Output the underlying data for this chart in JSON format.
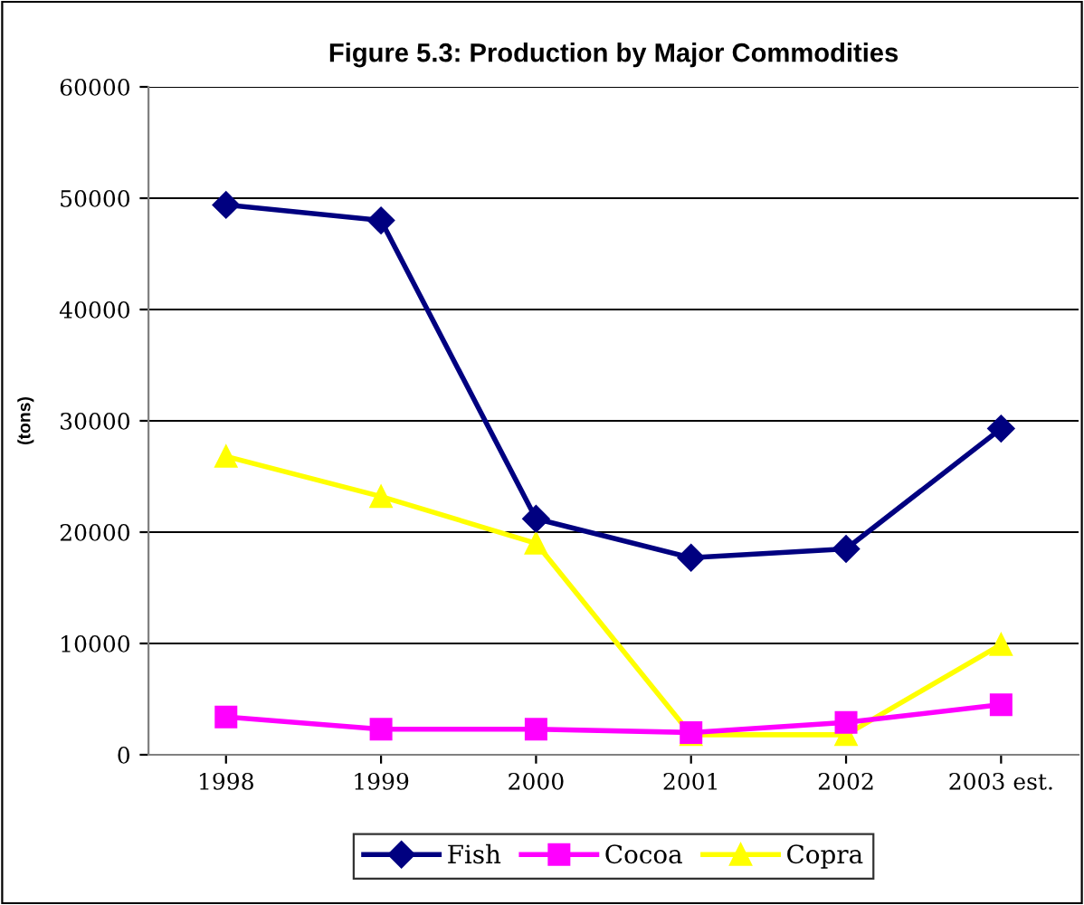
{
  "chart_data": {
    "type": "line",
    "title": "Figure 5.3: Production by Major Commodities",
    "ylabel": "(tons)",
    "categories": [
      "1998",
      "1999",
      "2000",
      "2001",
      "2002",
      "2003 est."
    ],
    "series": [
      {
        "name": "Fish",
        "color": "#000080",
        "marker": "diamond",
        "values": [
          49400,
          48000,
          21200,
          17700,
          18500,
          29300
        ]
      },
      {
        "name": "Cocoa",
        "color": "#ff00ff",
        "marker": "square",
        "values": [
          3400,
          2300,
          2300,
          2000,
          2900,
          4500
        ]
      },
      {
        "name": "Copra",
        "color": "#ffff00",
        "marker": "triangle",
        "values": [
          26800,
          23200,
          19000,
          1800,
          1800,
          9900
        ]
      }
    ],
    "ylim": [
      0,
      60000
    ],
    "yticks": [
      0,
      10000,
      20000,
      30000,
      40000,
      50000,
      60000
    ],
    "grid": "y",
    "legend": "bottom",
    "line_style": "solid"
  }
}
